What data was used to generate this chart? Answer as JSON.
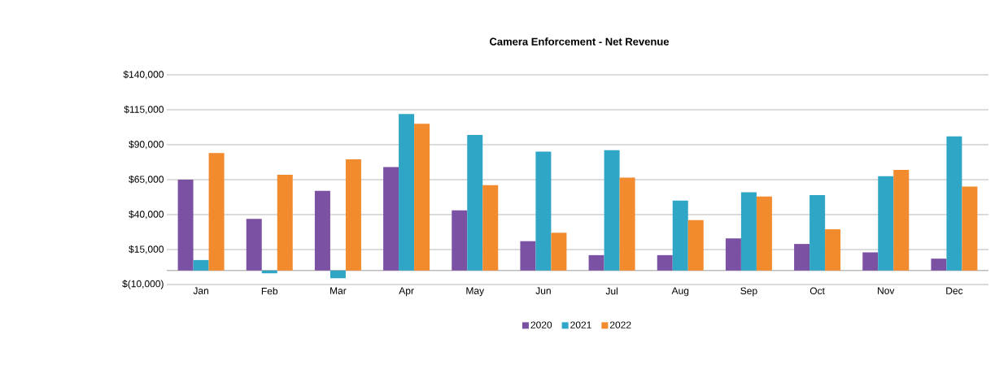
{
  "chart_data": {
    "type": "bar",
    "title": "Camera Enforcement - Net Revenue",
    "categories": [
      "Jan",
      "Feb",
      "Mar",
      "Apr",
      "May",
      "Jun",
      "Jul",
      "Aug",
      "Sep",
      "Oct",
      "Nov",
      "Dec"
    ],
    "series": [
      {
        "name": "2020",
        "color": "#7b52a3",
        "values": [
          65000,
          37000,
          57000,
          74000,
          43000,
          21000,
          11000,
          11000,
          23000,
          19000,
          13000,
          8500
        ]
      },
      {
        "name": "2021",
        "color": "#2fa6c6",
        "values": [
          7500,
          -2000,
          -5500,
          112000,
          97000,
          85000,
          86000,
          50000,
          56000,
          54000,
          67500,
          96000
        ]
      },
      {
        "name": "2022",
        "color": "#f28a2e",
        "values": [
          84000,
          68500,
          79500,
          105000,
          61000,
          27000,
          66500,
          36000,
          53000,
          29500,
          72000,
          60000
        ]
      }
    ],
    "ylim": [
      -10000,
      140000
    ],
    "yticks": [
      {
        "value": -10000,
        "label": "$(10,000)"
      },
      {
        "value": 15000,
        "label": "$15,000"
      },
      {
        "value": 40000,
        "label": "$40,000"
      },
      {
        "value": 65000,
        "label": "$65,000"
      },
      {
        "value": 90000,
        "label": "$90,000"
      },
      {
        "value": 115000,
        "label": "$115,000"
      },
      {
        "value": 140000,
        "label": "$140,000"
      }
    ],
    "grid": "y",
    "legend": "bottom"
  }
}
